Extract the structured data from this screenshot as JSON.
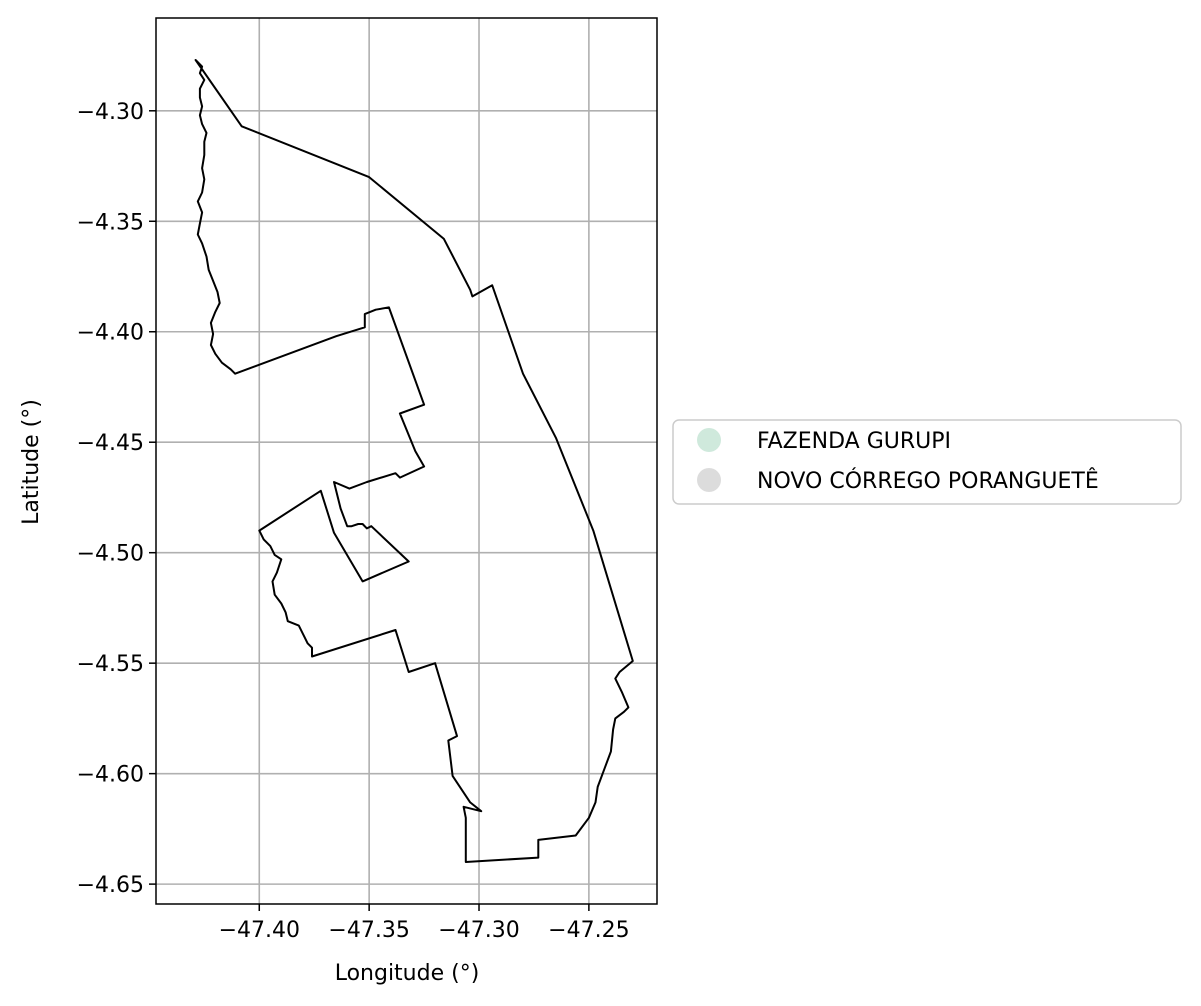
{
  "chart_data": {
    "type": "map",
    "xlabel": "Longitude (°)",
    "ylabel": "Latitude (°)",
    "xlim": [
      -47.447,
      -47.219
    ],
    "ylim": [
      -4.659,
      -4.258
    ],
    "grid": true,
    "legend_placement": "right-center",
    "x_ticks": [
      {
        "value": -47.4,
        "label": "−47.40"
      },
      {
        "value": -47.35,
        "label": "−47.35"
      },
      {
        "value": -47.3,
        "label": "−47.30"
      },
      {
        "value": -47.25,
        "label": "−47.25"
      }
    ],
    "y_ticks": [
      {
        "value": -4.3,
        "label": "−4.30"
      },
      {
        "value": -4.35,
        "label": "−4.35"
      },
      {
        "value": -4.4,
        "label": "−4.40"
      },
      {
        "value": -4.45,
        "label": "−4.45"
      },
      {
        "value": -4.5,
        "label": "−4.50"
      },
      {
        "value": -4.55,
        "label": "−4.55"
      },
      {
        "value": -4.6,
        "label": "−4.60"
      },
      {
        "value": -4.65,
        "label": "−4.65"
      }
    ],
    "legend": [
      {
        "name": "FAZENDA GURUPI",
        "color": "#cfe9dc"
      },
      {
        "name": "NOVO CÓRREGO PORANGUETÊ",
        "color": "#dcdcdc"
      }
    ],
    "boundary_color": "#000000",
    "polygons": [
      {
        "name": "FAZENDA GURUPI",
        "coords": [
          [
            -47.429,
            -4.277
          ],
          [
            -47.426,
            -4.28
          ],
          [
            -47.427,
            -4.283
          ],
          [
            -47.425,
            -4.286
          ],
          [
            -47.427,
            -4.29
          ],
          [
            -47.427,
            -4.294
          ],
          [
            -47.426,
            -4.298
          ],
          [
            -47.427,
            -4.302
          ],
          [
            -47.426,
            -4.306
          ],
          [
            -47.424,
            -4.31
          ],
          [
            -47.425,
            -4.314
          ],
          [
            -47.425,
            -4.32
          ],
          [
            -47.426,
            -4.326
          ],
          [
            -47.425,
            -4.331
          ],
          [
            -47.426,
            -4.337
          ],
          [
            -47.428,
            -4.341
          ],
          [
            -47.426,
            -4.346
          ],
          [
            -47.427,
            -4.351
          ],
          [
            -47.428,
            -4.356
          ],
          [
            -47.426,
            -4.36
          ],
          [
            -47.424,
            -4.366
          ],
          [
            -47.423,
            -4.372
          ],
          [
            -47.421,
            -4.377
          ],
          [
            -47.419,
            -4.382
          ],
          [
            -47.418,
            -4.387
          ],
          [
            -47.42,
            -4.391
          ],
          [
            -47.422,
            -4.396
          ],
          [
            -47.421,
            -4.401
          ],
          [
            -47.422,
            -4.406
          ],
          [
            -47.42,
            -4.41
          ],
          [
            -47.417,
            -4.414
          ],
          [
            -47.413,
            -4.417
          ],
          [
            -47.411,
            -4.419
          ],
          [
            -47.365,
            -4.402
          ],
          [
            -47.352,
            -4.398
          ],
          [
            -47.352,
            -4.392
          ],
          [
            -47.347,
            -4.39
          ],
          [
            -47.341,
            -4.389
          ],
          [
            -47.325,
            -4.433
          ],
          [
            -47.336,
            -4.437
          ],
          [
            -47.329,
            -4.454
          ],
          [
            -47.325,
            -4.461
          ],
          [
            -47.336,
            -4.466
          ],
          [
            -47.338,
            -4.464
          ],
          [
            -47.351,
            -4.468
          ],
          [
            -47.359,
            -4.471
          ],
          [
            -47.366,
            -4.468
          ],
          [
            -47.363,
            -4.48
          ],
          [
            -47.36,
            -4.488
          ],
          [
            -47.358,
            -4.488
          ],
          [
            -47.355,
            -4.487
          ],
          [
            -47.353,
            -4.487
          ],
          [
            -47.351,
            -4.489
          ],
          [
            -47.349,
            -4.488
          ],
          [
            -47.332,
            -4.504
          ],
          [
            -47.353,
            -4.513
          ],
          [
            -47.366,
            -4.491
          ],
          [
            -47.372,
            -4.472
          ],
          [
            -47.4,
            -4.49
          ],
          [
            -47.398,
            -4.494
          ],
          [
            -47.395,
            -4.497
          ],
          [
            -47.393,
            -4.501
          ],
          [
            -47.39,
            -4.503
          ],
          [
            -47.392,
            -4.509
          ],
          [
            -47.394,
            -4.513
          ],
          [
            -47.393,
            -4.519
          ],
          [
            -47.39,
            -4.523
          ],
          [
            -47.388,
            -4.527
          ],
          [
            -47.387,
            -4.531
          ],
          [
            -47.382,
            -4.533
          ],
          [
            -47.38,
            -4.537
          ],
          [
            -47.378,
            -4.541
          ],
          [
            -47.376,
            -4.543
          ],
          [
            -47.376,
            -4.547
          ],
          [
            -47.338,
            -4.535
          ],
          [
            -47.332,
            -4.554
          ],
          [
            -47.32,
            -4.55
          ],
          [
            -47.31,
            -4.583
          ],
          [
            -47.314,
            -4.585
          ],
          [
            -47.312,
            -4.601
          ],
          [
            -47.304,
            -4.613
          ],
          [
            -47.299,
            -4.617
          ],
          [
            -47.307,
            -4.615
          ],
          [
            -47.306,
            -4.62
          ],
          [
            -47.306,
            -4.64
          ],
          [
            -47.273,
            -4.638
          ],
          [
            -47.273,
            -4.63
          ],
          [
            -47.256,
            -4.628
          ],
          [
            -47.25,
            -4.62
          ],
          [
            -47.247,
            -4.613
          ],
          [
            -47.246,
            -4.606
          ],
          [
            -47.243,
            -4.598
          ],
          [
            -47.24,
            -4.59
          ],
          [
            -47.239,
            -4.58
          ],
          [
            -47.238,
            -4.575
          ],
          [
            -47.234,
            -4.572
          ],
          [
            -47.232,
            -4.57
          ],
          [
            -47.235,
            -4.563
          ],
          [
            -47.238,
            -4.557
          ],
          [
            -47.236,
            -4.554
          ],
          [
            -47.23,
            -4.549
          ],
          [
            -47.248,
            -4.49
          ],
          [
            -47.265,
            -4.448
          ],
          [
            -47.28,
            -4.419
          ],
          [
            -47.294,
            -4.379
          ],
          [
            -47.303,
            -4.384
          ],
          [
            -47.304,
            -4.381
          ],
          [
            -47.316,
            -4.358
          ],
          [
            -47.35,
            -4.33
          ],
          [
            -47.408,
            -4.307
          ],
          [
            -47.429,
            -4.277
          ]
        ]
      }
    ]
  }
}
